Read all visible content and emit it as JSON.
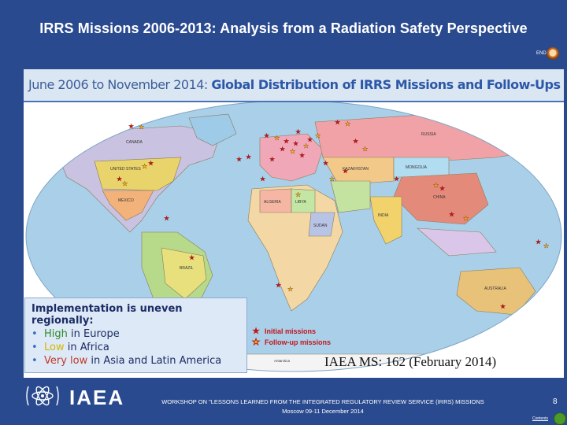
{
  "slide": {
    "title": "IRRS Missions 2006-2013: Analysis from a Radiation Safety Perspective",
    "end_link": "END",
    "subtitle_prefix": "June 2006 to November 2014:",
    "subtitle_strong": "Global Distribution of IRRS Missions and Follow-Ups"
  },
  "map": {
    "country_labels": [
      "CANADA",
      "UNITED STATES",
      "MEXICO",
      "BRAZIL",
      "ALGERIA",
      "LIBYA",
      "SUDAN",
      "RUSSIA",
      "CHINA",
      "INDIA",
      "AUSTRALIA",
      "KAZAKHSTAN",
      "MONGOLIA",
      "Antarctica"
    ],
    "legend": {
      "initial": "Initial missions",
      "followup": "Follow-up missions"
    }
  },
  "implementation": {
    "heading": "Implementation is uneven regionally:",
    "items": [
      {
        "level": "High",
        "region": "in Europe"
      },
      {
        "level": "Low",
        "region": "in Africa"
      },
      {
        "level": "Very low",
        "region": "in Asia and Latin America"
      }
    ]
  },
  "member_states": "IAEA MS: 162 (February 2014)",
  "footer": {
    "org": "IAEA",
    "workshop_line1": "WORKSHOP ON \"LESSONS LEARNED FROM THE INTEGRATED REGULATORY REVIEW SERVICE (IRRS) MISSIONS",
    "workshop_line2": "Moscow 09-11 December 2014",
    "page_number": "8",
    "contents_link": "Contents"
  },
  "colors": {
    "background": "#2a4a8f",
    "initial_star": "#c4151b",
    "followup_star": "#e8c40a",
    "high": "#2e8b2e",
    "low": "#d4b800",
    "very_low": "#c0392b"
  },
  "icons": {
    "end": "end-circle-icon",
    "home": "home-arrow-icon",
    "logo": "iaea-atom-logo"
  }
}
